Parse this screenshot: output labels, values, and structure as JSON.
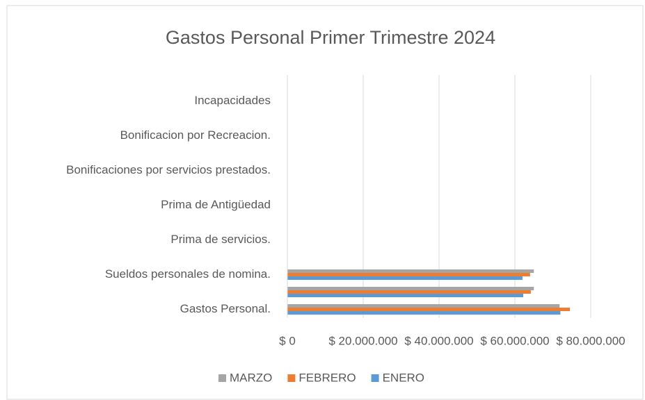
{
  "chart_data": {
    "type": "barh",
    "title": "Gastos Personal Primer Trimestre  2024",
    "categories": [
      "Gastos Personal.",
      null,
      "Sueldos personales de nomina.",
      null,
      "Prima de servicios.",
      null,
      "Prima de Antigüedad",
      null,
      "Bonificaciones por servicios prestados.",
      null,
      "Bonificacion por Recreacion.",
      null,
      "Incapacidades",
      null
    ],
    "series": [
      {
        "name": "ENERO",
        "color": "#5b9bd5",
        "values": [
          72000000,
          62200000,
          62000000,
          0,
          0,
          0,
          0,
          0,
          0,
          0,
          0,
          0,
          0,
          0
        ]
      },
      {
        "name": "FEBRERO",
        "color": "#ed7d31",
        "values": [
          74500000,
          64200000,
          64000000,
          0,
          0,
          0,
          0,
          0,
          0,
          0,
          0,
          0,
          0,
          0
        ]
      },
      {
        "name": "MARZO",
        "color": "#a5a5a5",
        "values": [
          71800000,
          65000000,
          65000000,
          0,
          0,
          0,
          0,
          0,
          0,
          0,
          0,
          0,
          0,
          0
        ]
      }
    ],
    "xlim": [
      0,
      80000000
    ],
    "xticks": [
      {
        "value": 0,
        "label": "$ 0"
      },
      {
        "value": 20000000,
        "label": "$ 20.000.000"
      },
      {
        "value": 40000000,
        "label": "$ 40.000.000"
      },
      {
        "value": 60000000,
        "label": "$ 60.000.000"
      },
      {
        "value": 80000000,
        "label": "$ 80.000.000"
      }
    ],
    "grid": true,
    "legend": "bottom"
  }
}
